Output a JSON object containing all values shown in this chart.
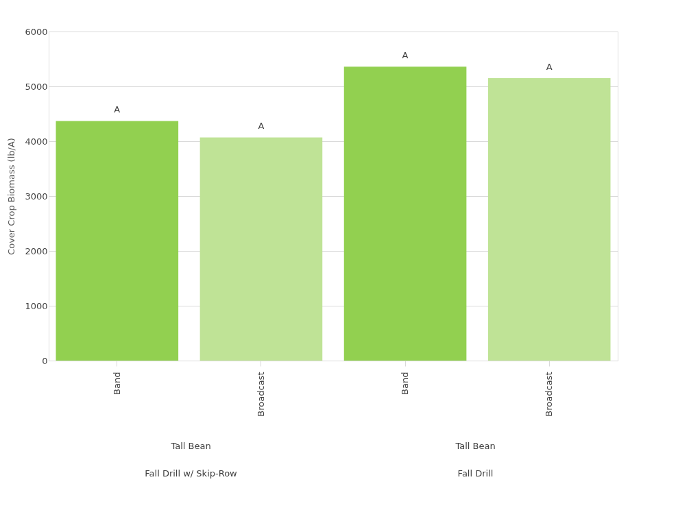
{
  "chart_data": {
    "type": "bar",
    "ylabel": "Cover Crop Biomass (lb/A)",
    "categories": [
      "Band",
      "Broadcast",
      "Band",
      "Broadcast"
    ],
    "values": [
      4370,
      4070,
      5360,
      5150
    ],
    "colors": [
      "#92d050",
      "#bfe396",
      "#92d050",
      "#bfe396"
    ],
    "value_labels": [
      "A",
      "A",
      "A",
      "A"
    ],
    "annotations": [
      "Tall Bean",
      "Fall Drill w/ Skip-Row",
      "Tall Bean",
      "Fall Drill"
    ],
    "ylim": [
      0,
      6000
    ],
    "yticks": [
      0,
      1000,
      2000,
      3000,
      4000,
      5000,
      6000
    ],
    "grid": "y"
  }
}
